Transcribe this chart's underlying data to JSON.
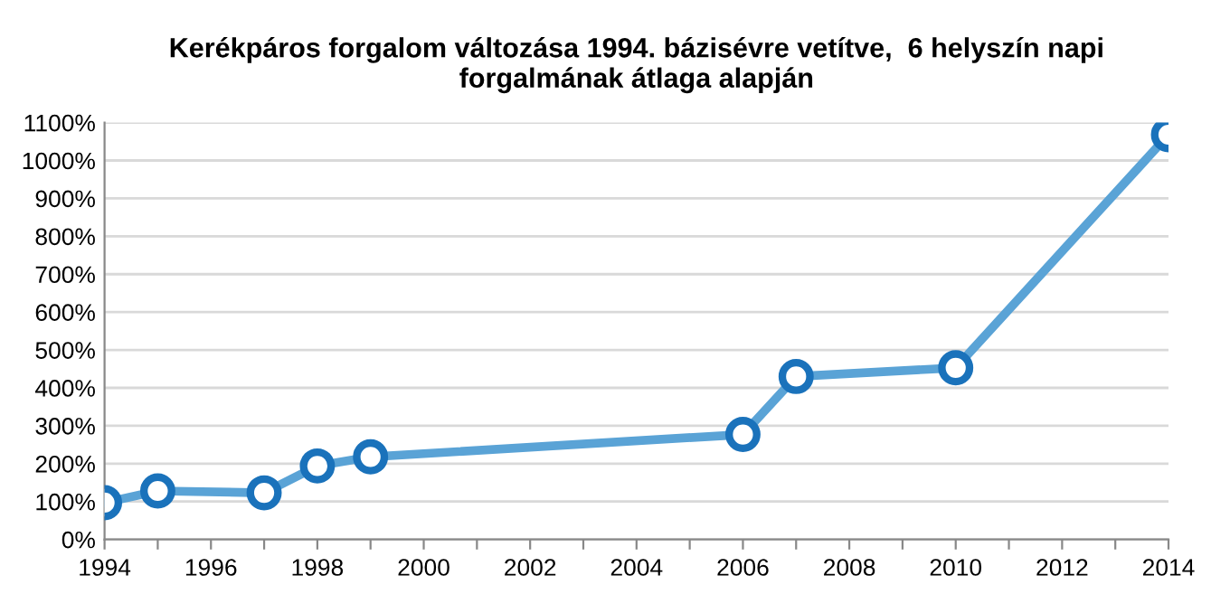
{
  "chart_data": {
    "type": "line",
    "title": "Kerékpáros forgalom változása 1994. bázisévre vetítve,  6 helyszín napi\nforgalmának átlaga alapján",
    "x": [
      1994,
      1995,
      1997,
      1998,
      1999,
      2006,
      2007,
      2010,
      2014
    ],
    "series": [
      {
        "color": "#5aa3d6",
        "values": [
          97,
          128,
          123,
          194,
          218,
          277,
          430,
          453,
          1068
        ]
      }
    ],
    "marker": "circle",
    "grid": "y",
    "xlim": [
      1994,
      2014
    ],
    "ylim": [
      0,
      1100
    ],
    "xticks": [
      1994,
      {
        "value": 1995,
        "label": null
      },
      1996,
      {
        "value": 1997,
        "label": null
      },
      1998,
      {
        "value": 1999,
        "label": null
      },
      2000,
      {
        "value": 2001,
        "label": null
      },
      2002,
      {
        "value": 2003,
        "label": null
      },
      2004,
      {
        "value": 2005,
        "label": null
      },
      2006,
      {
        "value": 2007,
        "label": null
      },
      2008,
      {
        "value": 2009,
        "label": null
      },
      2010,
      {
        "value": 2011,
        "label": null
      },
      2012,
      {
        "value": 2013,
        "label": null
      },
      2014
    ],
    "yticks": [
      {
        "value": 0,
        "label": "0%"
      },
      {
        "value": 100,
        "label": "100%"
      },
      {
        "value": 200,
        "label": "200%"
      },
      {
        "value": 300,
        "label": "300%"
      },
      {
        "value": 400,
        "label": "400%"
      },
      {
        "value": 500,
        "label": "500%"
      },
      {
        "value": 600,
        "label": "600%"
      },
      {
        "value": 700,
        "label": "700%"
      },
      {
        "value": 800,
        "label": "800%"
      },
      {
        "value": 900,
        "label": "900%"
      },
      {
        "value": 1000,
        "label": "1000%"
      },
      {
        "value": 1100,
        "label": "1100%"
      }
    ]
  }
}
